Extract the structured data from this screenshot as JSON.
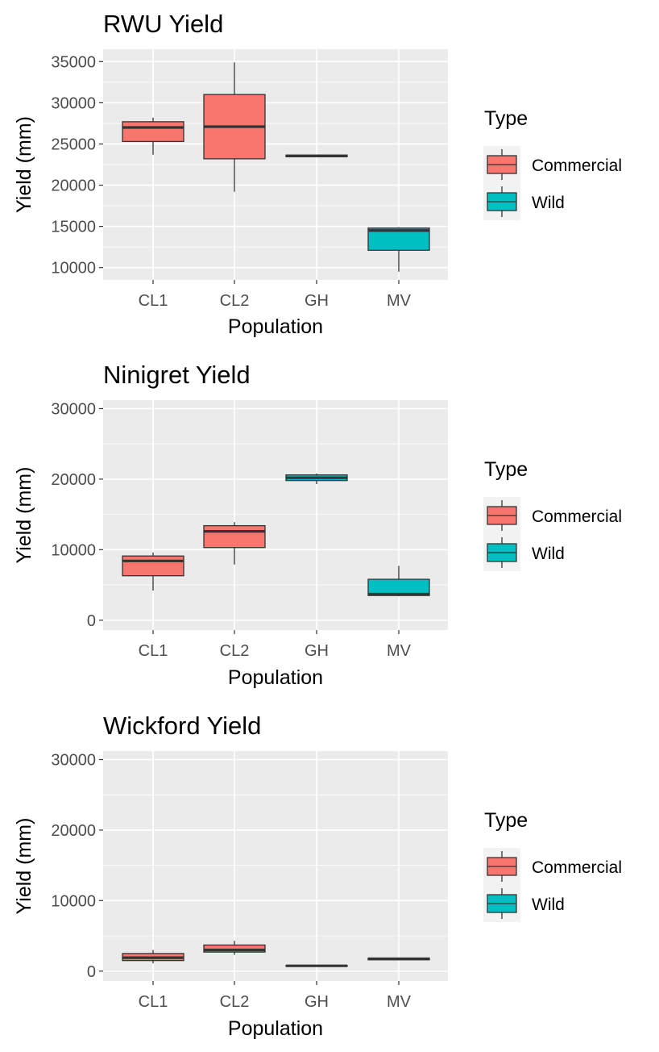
{
  "chart_data": [
    {
      "type": "boxplot",
      "title": "RWU Yield",
      "xlabel": "Population",
      "ylabel": "Yield (mm)",
      "ylim": [
        8500,
        36500
      ],
      "yticks": [
        10000,
        15000,
        20000,
        25000,
        30000,
        35000
      ],
      "grid": true,
      "legend": {
        "title": "Type",
        "position": "right",
        "entries": [
          "Commercial",
          "Wild"
        ]
      },
      "categories": [
        "CL1",
        "CL2",
        "GH",
        "MV"
      ],
      "boxes": [
        {
          "category": "CL1",
          "type": "Commercial",
          "min": 23700,
          "q1": 25300,
          "median": 27000,
          "q3": 27700,
          "max": 28200
        },
        {
          "category": "CL2",
          "type": "Commercial",
          "min": 19200,
          "q1": 23200,
          "median": 27100,
          "q3": 31000,
          "max": 34900
        },
        {
          "category": "GH",
          "type": "Wild",
          "min": 23400,
          "q1": 23450,
          "median": 23550,
          "q3": 23650,
          "max": 23700
        },
        {
          "category": "MV",
          "type": "Wild",
          "min": 9500,
          "q1": 12100,
          "median": 14500,
          "q3": 14800,
          "max": 14900
        }
      ]
    },
    {
      "type": "boxplot",
      "title": "Ninigret Yield",
      "xlabel": "Population",
      "ylabel": "Yield (mm)",
      "ylim": [
        -1400,
        31200
      ],
      "yticks": [
        0,
        10000,
        20000,
        30000
      ],
      "grid": true,
      "legend": {
        "title": "Type",
        "position": "right",
        "entries": [
          "Commercial",
          "Wild"
        ]
      },
      "categories": [
        "CL1",
        "CL2",
        "GH",
        "MV"
      ],
      "boxes": [
        {
          "category": "CL1",
          "type": "Commercial",
          "min": 4200,
          "q1": 6300,
          "median": 8400,
          "q3": 9100,
          "max": 9600
        },
        {
          "category": "CL2",
          "type": "Commercial",
          "min": 7900,
          "q1": 10300,
          "median": 12600,
          "q3": 13400,
          "max": 13900
        },
        {
          "category": "GH",
          "type": "Wild",
          "min": 19300,
          "q1": 19800,
          "median": 20200,
          "q3": 20600,
          "max": 20800
        },
        {
          "category": "MV",
          "type": "Wild",
          "min": 3400,
          "q1": 3500,
          "median": 3700,
          "q3": 5800,
          "max": 7700
        }
      ]
    },
    {
      "type": "boxplot",
      "title": "Wickford Yield",
      "xlabel": "Population",
      "ylabel": "Yield (mm)",
      "ylim": [
        -1400,
        31200
      ],
      "yticks": [
        0,
        10000,
        20000,
        30000
      ],
      "grid": true,
      "legend": {
        "title": "Type",
        "position": "right",
        "entries": [
          "Commercial",
          "Wild"
        ]
      },
      "categories": [
        "CL1",
        "CL2",
        "GH",
        "MV"
      ],
      "boxes": [
        {
          "category": "CL1",
          "type": "Commercial",
          "min": 1100,
          "q1": 1500,
          "median": 1900,
          "q3": 2500,
          "max": 3000
        },
        {
          "category": "CL2",
          "type": "Commercial",
          "min": 2300,
          "q1": 2700,
          "median": 3000,
          "q3": 3700,
          "max": 4300
        },
        {
          "category": "GH",
          "type": "Wild",
          "min": 650,
          "q1": 700,
          "median": 750,
          "q3": 800,
          "max": 850
        },
        {
          "category": "MV",
          "type": "Wild",
          "min": 1550,
          "q1": 1600,
          "median": 1750,
          "q3": 1850,
          "max": 1900
        }
      ]
    }
  ],
  "colors": {
    "Commercial": "#F8766D",
    "Wild": "#00BFC4",
    "panel_background": "#EBEBEB",
    "grid": "#FFFFFF",
    "outline": "#333333"
  }
}
